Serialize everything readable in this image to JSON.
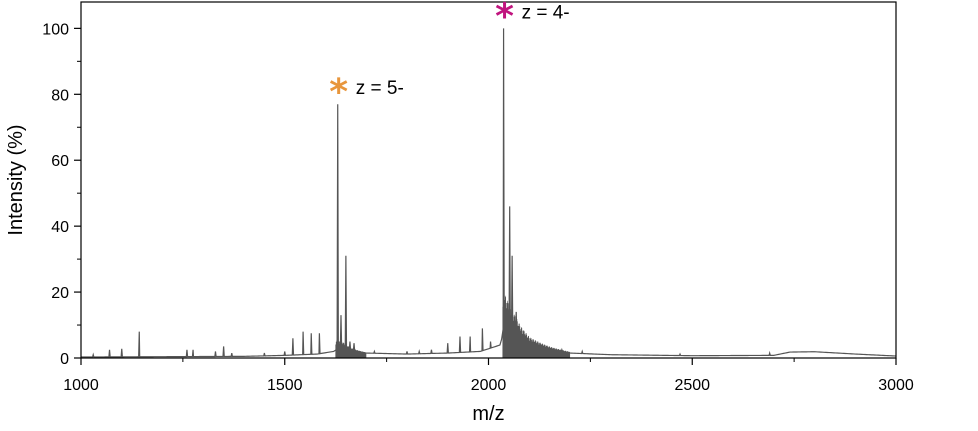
{
  "chart_data": {
    "type": "line",
    "xlabel": "m/z",
    "ylabel": "Intensity (%)",
    "xlim": [
      1000,
      3000
    ],
    "ylim": [
      0,
      108
    ],
    "xticks": [
      1000,
      1500,
      2000,
      2500,
      3000
    ],
    "yticks": [
      0,
      20,
      40,
      60,
      80,
      100
    ],
    "grid": false,
    "line_color": "#555555",
    "baseline": [
      [
        1000,
        0.3
      ],
      [
        1200,
        0.4
      ],
      [
        1400,
        0.5
      ],
      [
        1500,
        0.8
      ],
      [
        1580,
        1.2
      ],
      [
        1620,
        2.0
      ],
      [
        1640,
        3.5
      ],
      [
        1660,
        2.5
      ],
      [
        1700,
        1.5
      ],
      [
        1800,
        1.2
      ],
      [
        1900,
        1.5
      ],
      [
        1980,
        2.0
      ],
      [
        2030,
        4.0
      ],
      [
        2040,
        12.0
      ],
      [
        2060,
        9.0
      ],
      [
        2080,
        6.0
      ],
      [
        2100,
        4.0
      ],
      [
        2150,
        2.5
      ],
      [
        2200,
        1.5
      ],
      [
        2300,
        1.0
      ],
      [
        2500,
        0.7
      ],
      [
        2700,
        0.8
      ],
      [
        2740,
        1.8
      ],
      [
        2800,
        1.9
      ],
      [
        2900,
        1.2
      ],
      [
        3000,
        0.6
      ]
    ],
    "peaks": [
      [
        1030,
        1
      ],
      [
        1070,
        2.5
      ],
      [
        1100,
        2.8
      ],
      [
        1143,
        8
      ],
      [
        1260,
        2.5
      ],
      [
        1275,
        2.5
      ],
      [
        1330,
        2
      ],
      [
        1350,
        3.5
      ],
      [
        1370,
        1.5
      ],
      [
        1450,
        1.5
      ],
      [
        1500,
        2
      ],
      [
        1520,
        6
      ],
      [
        1545,
        8
      ],
      [
        1565,
        7.5
      ],
      [
        1585,
        7.5
      ],
      [
        1630,
        77
      ],
      [
        1638,
        13
      ],
      [
        1650,
        31
      ],
      [
        1660,
        5
      ],
      [
        1670,
        4.5
      ],
      [
        1720,
        2
      ],
      [
        1800,
        2
      ],
      [
        1830,
        2
      ],
      [
        1860,
        2.5
      ],
      [
        1900,
        4.5
      ],
      [
        1930,
        6.5
      ],
      [
        1955,
        6.5
      ],
      [
        1985,
        9
      ],
      [
        2005,
        5
      ],
      [
        2037,
        100
      ],
      [
        2052,
        46
      ],
      [
        2058,
        31
      ],
      [
        2068,
        14
      ],
      [
        2090,
        6
      ],
      [
        2110,
        4
      ],
      [
        2150,
        3
      ],
      [
        2180,
        2.5
      ],
      [
        2230,
        2
      ],
      [
        2470,
        1.2
      ],
      [
        2690,
        1.5
      ]
    ],
    "annotations": [
      {
        "text": "z = 5-",
        "star_color": "#E8963C",
        "x": 1630,
        "y": 77
      },
      {
        "text": "z = 4-",
        "star_color": "#C0147E",
        "x": 2037,
        "y": 100
      }
    ]
  }
}
